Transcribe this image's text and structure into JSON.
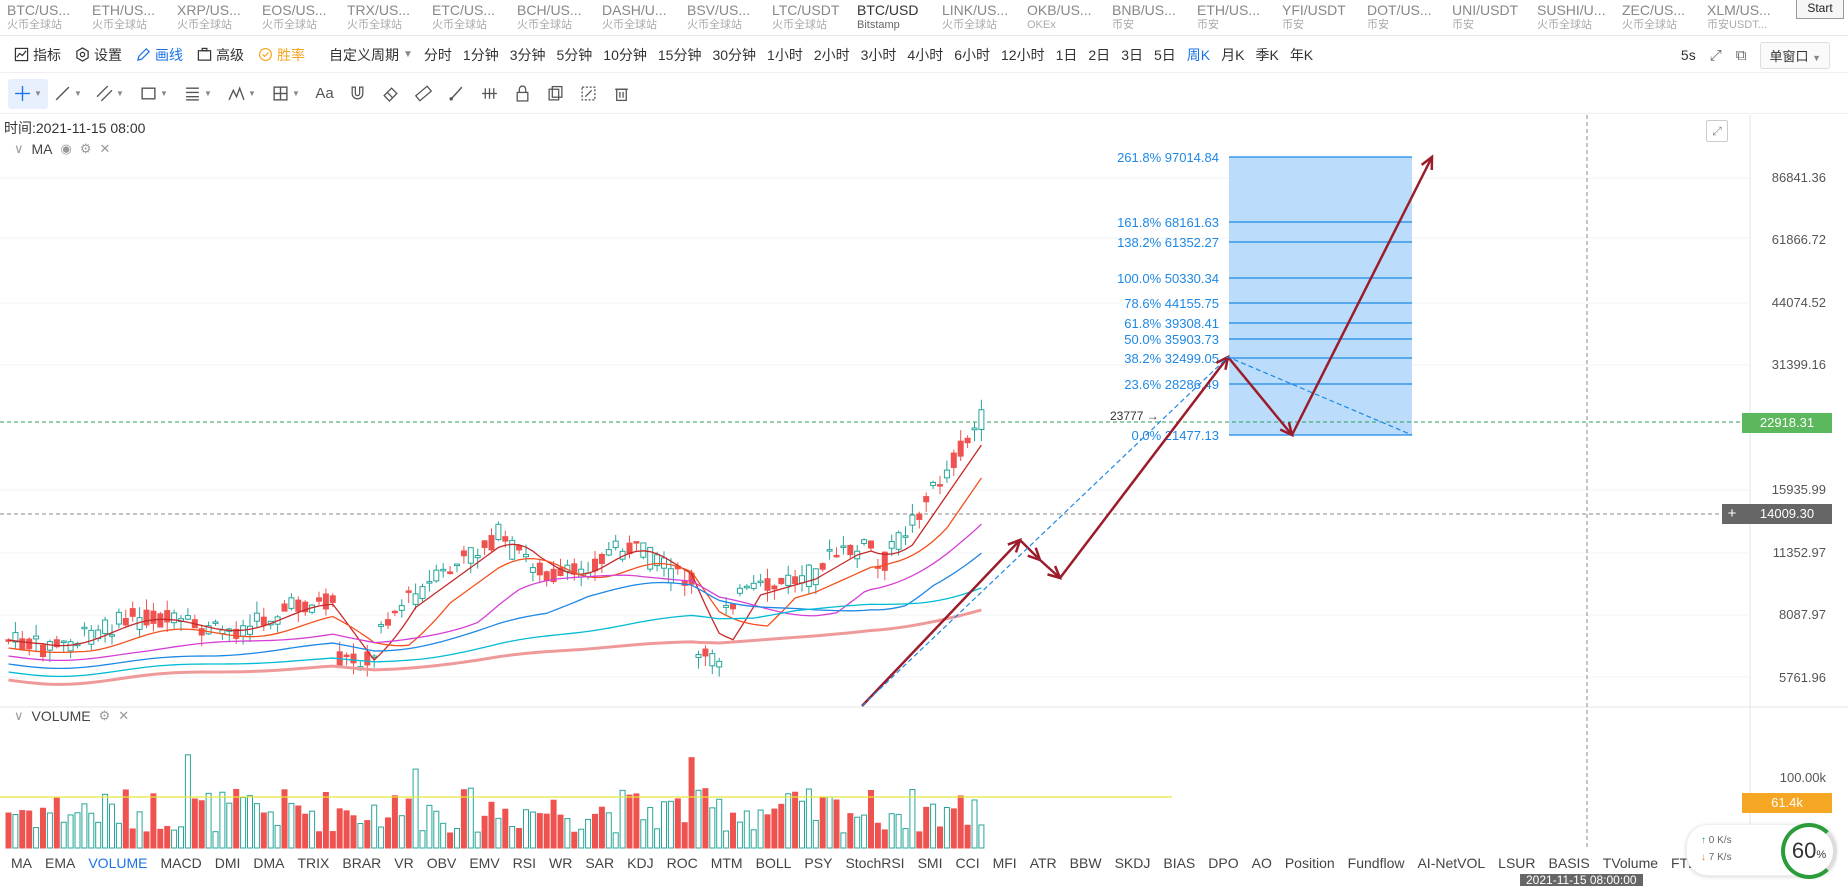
{
  "pairs": [
    {
      "sym": "BTC/US...",
      "ex": "火币全球站",
      "active": false
    },
    {
      "sym": "ETH/US...",
      "ex": "火币全球站",
      "active": false
    },
    {
      "sym": "XRP/US...",
      "ex": "火币全球站",
      "active": false
    },
    {
      "sym": "EOS/US...",
      "ex": "火币全球站",
      "active": false
    },
    {
      "sym": "TRX/US...",
      "ex": "火币全球站",
      "active": false
    },
    {
      "sym": "ETC/US...",
      "ex": "火币全球站",
      "active": false
    },
    {
      "sym": "BCH/US...",
      "ex": "火币全球站",
      "active": false
    },
    {
      "sym": "DASH/U...",
      "ex": "火币全球站",
      "active": false
    },
    {
      "sym": "BSV/US...",
      "ex": "火币全球站",
      "active": false
    },
    {
      "sym": "LTC/USDT",
      "ex": "火币全球站",
      "active": false
    },
    {
      "sym": "BTC/USD",
      "ex": "Bitstamp",
      "active": true
    },
    {
      "sym": "LINK/US...",
      "ex": "火币全球站",
      "active": false
    },
    {
      "sym": "OKB/US...",
      "ex": "OKEx",
      "active": false
    },
    {
      "sym": "BNB/US...",
      "ex": "币安",
      "active": false
    },
    {
      "sym": "ETH/US...",
      "ex": "币安",
      "active": false
    },
    {
      "sym": "YFI/USDT",
      "ex": "币安",
      "active": false
    },
    {
      "sym": "DOT/US...",
      "ex": "币安",
      "active": false
    },
    {
      "sym": "UNI/USDT",
      "ex": "币安",
      "active": false
    },
    {
      "sym": "SUSHI/U...",
      "ex": "火币全球站",
      "active": false
    },
    {
      "sym": "ZEC/US...",
      "ex": "火币全球站",
      "active": false
    },
    {
      "sym": "XLM/US...",
      "ex": "币安USDT...",
      "active": false
    }
  ],
  "start_label": "Start",
  "toolbar": {
    "indicator": "指标",
    "settings": "设置",
    "draw": "画线",
    "advanced": "高级",
    "winrate": "胜率",
    "custom_period": "自定义周期",
    "periods": [
      "分时",
      "1分钟",
      "3分钟",
      "5分钟",
      "10分钟",
      "15分钟",
      "30分钟",
      "1小时",
      "2小时",
      "3小时",
      "4小时",
      "6小时",
      "12小时",
      "1日",
      "2日",
      "3日",
      "5日",
      "周K",
      "月K",
      "季K",
      "年K"
    ],
    "active_period": "周K",
    "refresh": "5s",
    "window_mode": "单窗口"
  },
  "time_label": "时间:2021-11-15 08:00",
  "ma_legend": "MA",
  "volume_legend": "VOLUME",
  "fib_levels": [
    {
      "label": "261.8% 97014.84"
    },
    {
      "label": "161.8% 68161.63"
    },
    {
      "label": "138.2% 61352.27"
    },
    {
      "label": "100.0% 50330.34"
    },
    {
      "label": "78.6% 44155.75"
    },
    {
      "label": "61.8% 39308.41"
    },
    {
      "label": "50.0% 35903.73"
    },
    {
      "label": "38.2% 32499.05"
    },
    {
      "label": "23.6% 28286.49"
    },
    {
      "label": "0.0% 21477.13"
    }
  ],
  "high_marker": "23777",
  "price_axis": [
    "86841.36",
    "61866.72",
    "44074.52",
    "31399.16",
    "15935.99",
    "11352.97",
    "8087.97",
    "5761.96"
  ],
  "current_price": "22918.31",
  "cursor_price": "14009.30",
  "cursor_plus": "+",
  "volume_axis": [
    "100.00k"
  ],
  "volume_current": "61.4k",
  "indicators": [
    "MA",
    "EMA",
    "VOLUME",
    "MACD",
    "DMI",
    "DMA",
    "TRIX",
    "BRAR",
    "VR",
    "OBV",
    "EMV",
    "RSI",
    "WR",
    "SAR",
    "KDJ",
    "ROC",
    "MTM",
    "BOLL",
    "PSY",
    "StochRSI",
    "SMI",
    "CCI",
    "MFI",
    "ATR",
    "BBW",
    "SKDJ",
    "BIAS",
    "DPO",
    "AO",
    "Position",
    "Fundflow",
    "AI-NetVOL",
    "LSUR",
    "BASIS",
    "TVolume",
    "FTBC"
  ],
  "active_indicator": "VOLUME",
  "date_axis": [
    "2021-11-15 08:00:00"
  ],
  "network": {
    "up": "0",
    "down": "7",
    "unit": "K/s",
    "percent": "60",
    "pct_sign": "%"
  },
  "colors": {
    "up": "#26a69a",
    "down": "#ef5350",
    "accent": "#1a73e8",
    "fib": "#1e88e5",
    "fibfill": "#b7dbfb",
    "arrow": "#9b1c2b",
    "price_tag": "#5cb85c",
    "vol_tag": "#f5a623"
  }
}
